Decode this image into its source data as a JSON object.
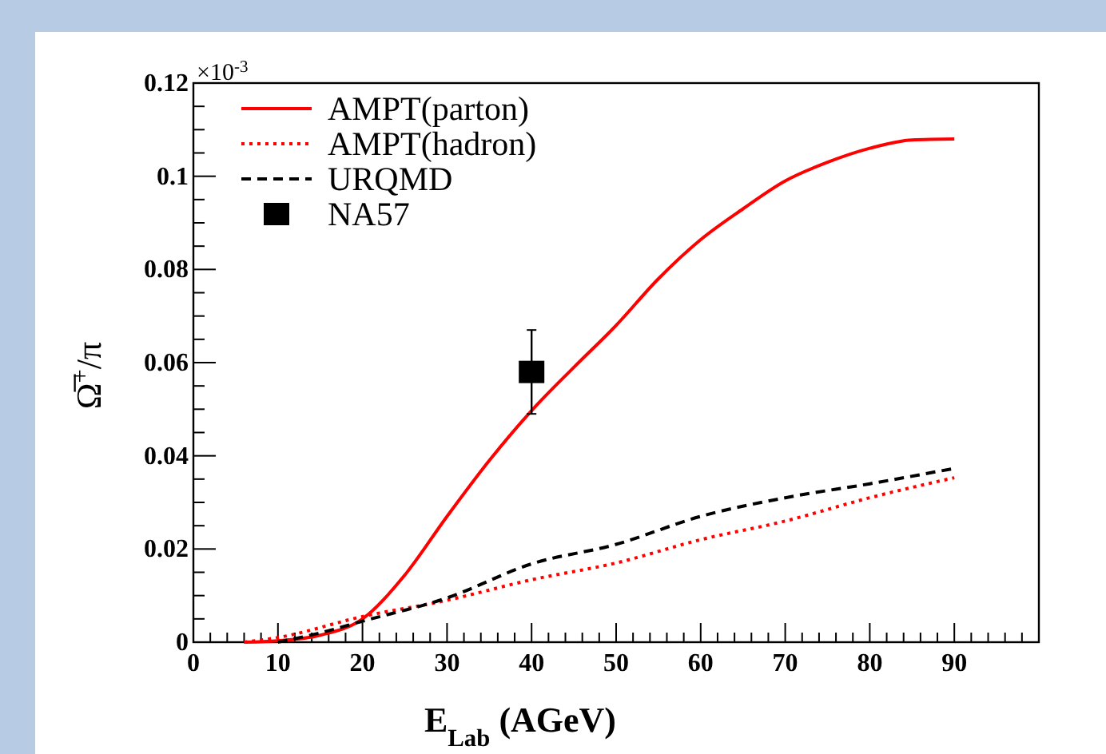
{
  "chart_data": {
    "type": "line",
    "xlabel": "E$_{Lab}$ (AGeV)",
    "ylabel": "Ω̅$^{+}$/π",
    "annotations": [
      "×10$^{-3}$"
    ],
    "xlim": [
      0,
      100
    ],
    "ylim": [
      0,
      0.12
    ],
    "xticks": [
      0,
      {
        "value": 2,
        "label": null
      },
      {
        "value": 4,
        "label": null
      },
      {
        "value": 6,
        "label": null
      },
      {
        "value": 8,
        "label": null
      },
      10,
      {
        "value": 12,
        "label": null
      },
      {
        "value": 14,
        "label": null
      },
      {
        "value": 16,
        "label": null
      },
      {
        "value": 18,
        "label": null
      },
      20,
      {
        "value": 22,
        "label": null
      },
      {
        "value": 24,
        "label": null
      },
      {
        "value": 26,
        "label": null
      },
      {
        "value": 28,
        "label": null
      },
      30,
      {
        "value": 32,
        "label": null
      },
      {
        "value": 34,
        "label": null
      },
      {
        "value": 36,
        "label": null
      },
      {
        "value": 38,
        "label": null
      },
      40,
      {
        "value": 42,
        "label": null
      },
      {
        "value": 44,
        "label": null
      },
      {
        "value": 46,
        "label": null
      },
      {
        "value": 48,
        "label": null
      },
      50,
      {
        "value": 52,
        "label": null
      },
      {
        "value": 54,
        "label": null
      },
      {
        "value": 56,
        "label": null
      },
      {
        "value": 58,
        "label": null
      },
      60,
      {
        "value": 62,
        "label": null
      },
      {
        "value": 64,
        "label": null
      },
      {
        "value": 66,
        "label": null
      },
      {
        "value": 68,
        "label": null
      },
      70,
      {
        "value": 72,
        "label": null
      },
      {
        "value": 74,
        "label": null
      },
      {
        "value": 76,
        "label": null
      },
      {
        "value": 78,
        "label": null
      },
      80,
      {
        "value": 82,
        "label": null
      },
      {
        "value": 84,
        "label": null
      },
      {
        "value": 86,
        "label": null
      },
      {
        "value": 88,
        "label": null
      },
      90,
      {
        "value": 92,
        "label": null
      },
      {
        "value": 94,
        "label": null
      },
      {
        "value": 96,
        "label": null
      },
      {
        "value": 98,
        "label": null
      },
      {
        "value": 100,
        "label": null
      }
    ],
    "yticks": [
      0,
      {
        "value": 0.005,
        "label": null
      },
      {
        "value": 0.01,
        "label": null
      },
      {
        "value": 0.015,
        "label": null
      },
      0.02,
      {
        "value": 0.025,
        "label": null
      },
      {
        "value": 0.03,
        "label": null
      },
      {
        "value": 0.035,
        "label": null
      },
      0.04,
      {
        "value": 0.045,
        "label": null
      },
      {
        "value": 0.05,
        "label": null
      },
      {
        "value": 0.055,
        "label": null
      },
      0.06,
      {
        "value": 0.065,
        "label": null
      },
      {
        "value": 0.07,
        "label": null
      },
      {
        "value": 0.075,
        "label": null
      },
      0.08,
      {
        "value": 0.085,
        "label": null
      },
      {
        "value": 0.09,
        "label": null
      },
      {
        "value": 0.095,
        "label": null
      },
      0.1,
      {
        "value": 0.105,
        "label": null
      },
      {
        "value": 0.11,
        "label": null
      },
      {
        "value": 0.115,
        "label": null
      },
      0.12
    ],
    "grid": false,
    "legend": "top left",
    "series": [
      {
        "name": "AMPT(parton)",
        "color": "#ff0000",
        "line_style": "solid",
        "x": [
          6,
          10,
          15,
          20,
          25,
          30,
          35,
          40,
          45,
          50,
          55,
          60,
          65,
          70,
          75,
          80,
          85,
          90
        ],
        "values": [
          0,
          0.0003,
          0.0015,
          0.005,
          0.0144,
          0.027,
          0.039,
          0.0497,
          0.059,
          0.068,
          0.078,
          0.0864,
          0.093,
          0.099,
          0.103,
          0.106,
          0.1078,
          0.108
        ]
      },
      {
        "name": "AMPT(hadron)",
        "color": "#ff0000",
        "line_style": "dotted",
        "x": [
          6,
          10,
          20,
          30,
          40,
          50,
          60,
          70,
          80,
          90
        ],
        "values": [
          0,
          0.001,
          0.0055,
          0.009,
          0.0134,
          0.017,
          0.022,
          0.026,
          0.031,
          0.0353
        ]
      },
      {
        "name": "URQMD",
        "color": "#000000",
        "line_style": "dashed",
        "x": [
          10,
          15,
          20,
          30,
          40,
          50,
          60,
          70,
          80,
          90
        ],
        "values": [
          0,
          0.002,
          0.0045,
          0.0095,
          0.0168,
          0.021,
          0.027,
          0.031,
          0.034,
          0.0373
        ]
      },
      {
        "name": "NA57",
        "type": "scatter",
        "color": "#000000",
        "marker": "square",
        "x": [
          40
        ],
        "values": [
          0.058
        ],
        "errors": [
          0.009
        ]
      }
    ]
  }
}
